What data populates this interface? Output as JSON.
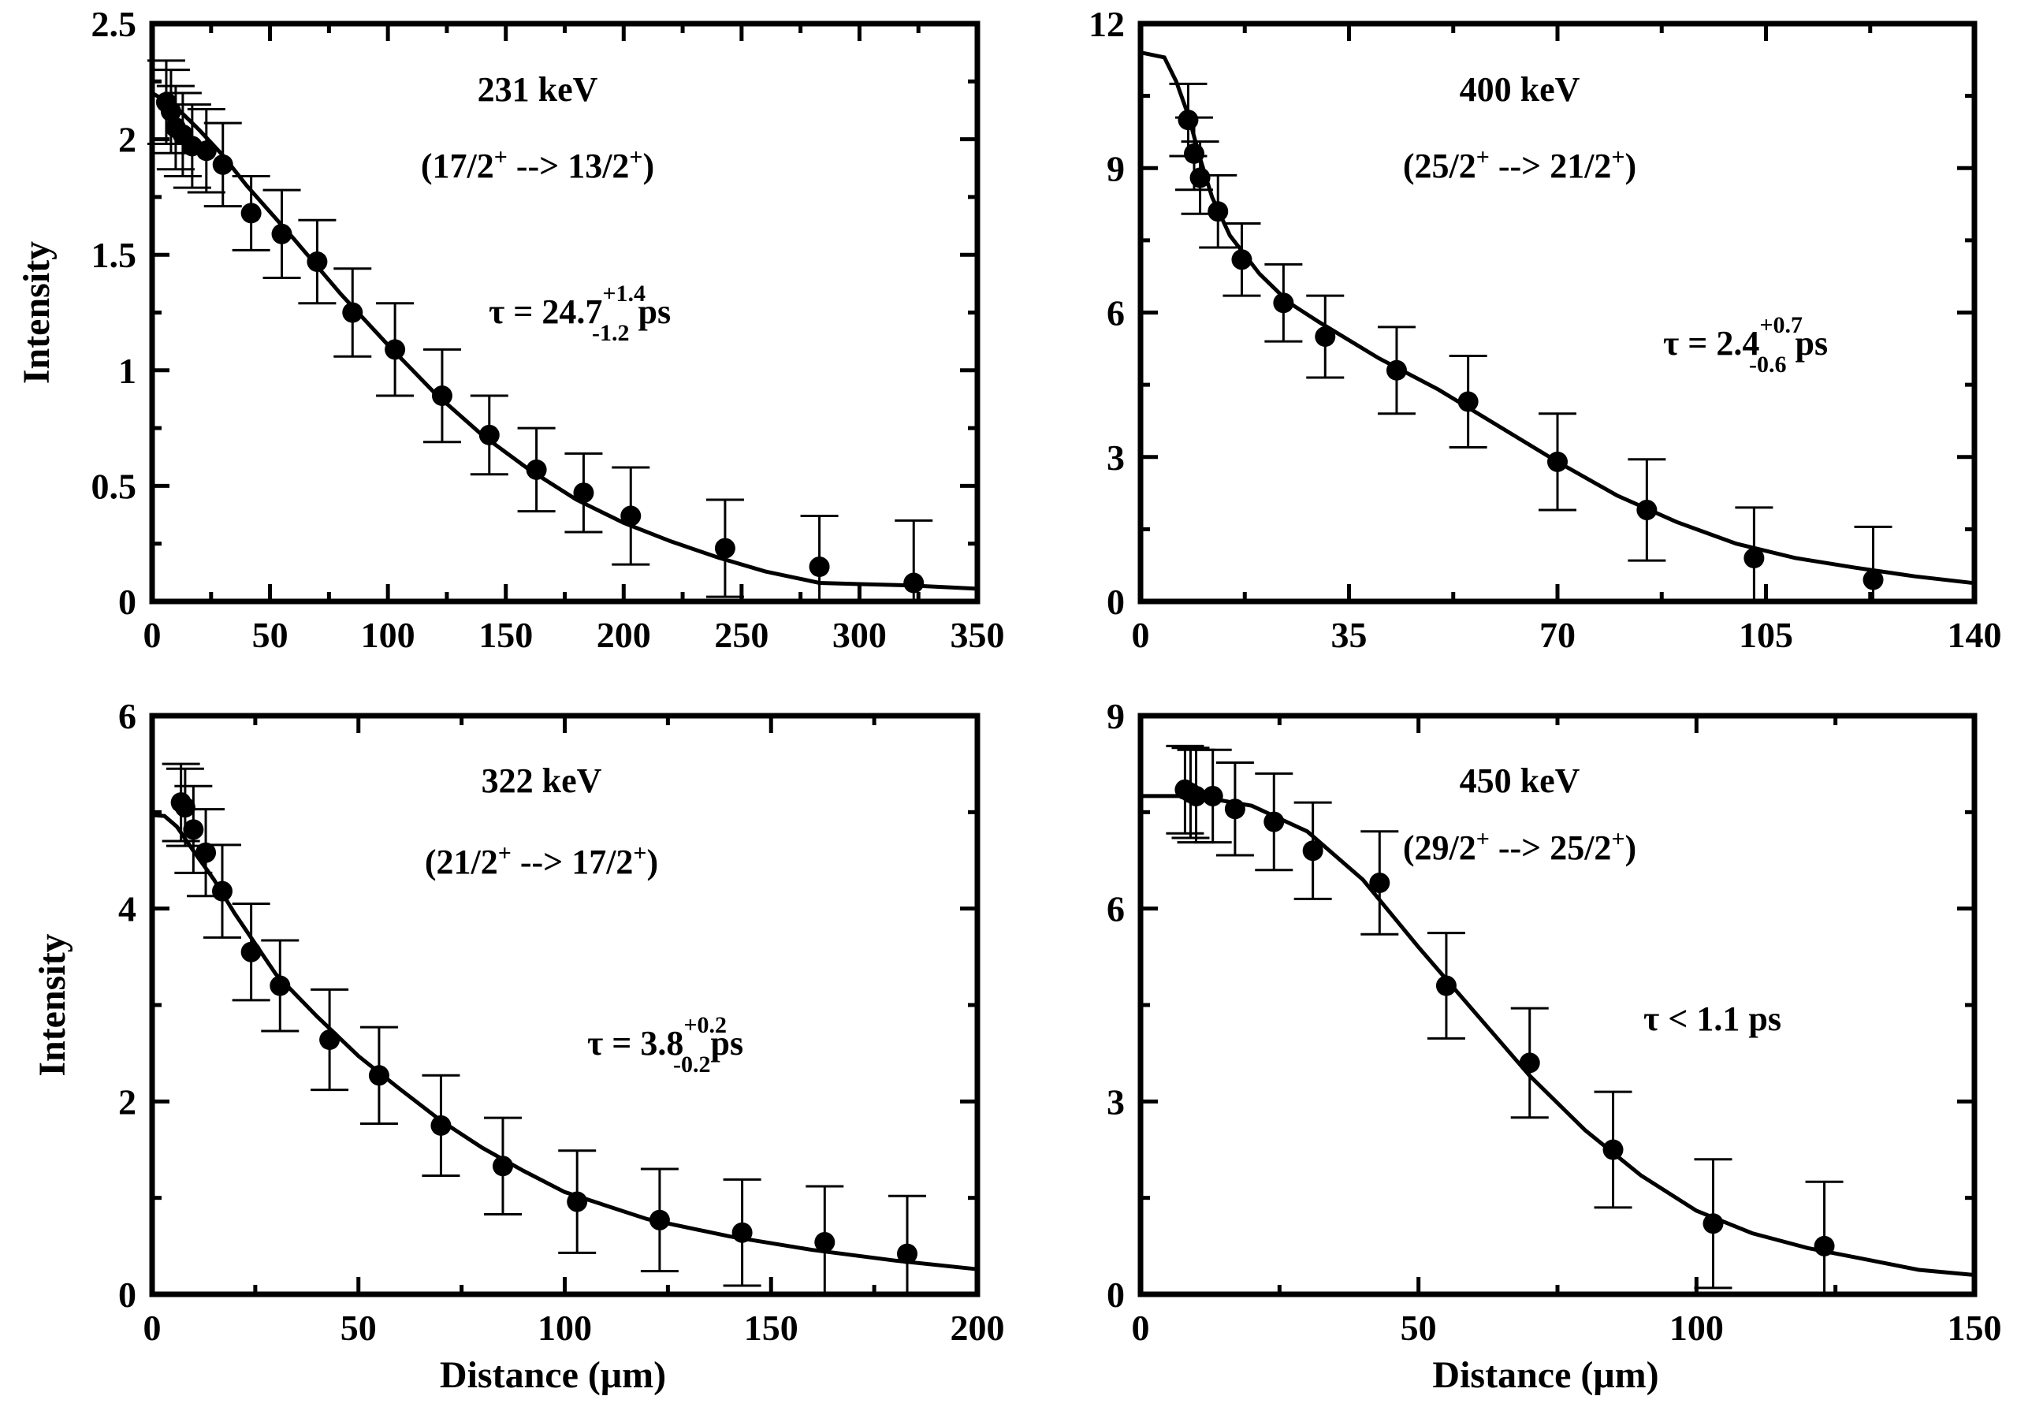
{
  "chart_data": [
    {
      "type": "scatter",
      "title": "231 keV",
      "subtitle": "(17/2+ --> 13/2+)",
      "annotation": {
        "prefix": "τ = 24.7",
        "sup": "+1.4",
        "sub": "-1.2",
        "suffix": " ps"
      },
      "xlabel": "",
      "ylabel": "Intensity",
      "xlim": [
        0,
        350
      ],
      "ylim": [
        0,
        2.5
      ],
      "xticks": [
        "0",
        "50",
        "100",
        "150",
        "200",
        "250",
        "300",
        "350"
      ],
      "yticks": [
        "0",
        "0.5",
        "1",
        "1.5",
        "2",
        "2.5"
      ],
      "points": [
        {
          "x": 6,
          "y": 2.16,
          "err": 0.18
        },
        {
          "x": 8,
          "y": 2.12,
          "err": 0.18
        },
        {
          "x": 10,
          "y": 2.05,
          "err": 0.18
        },
        {
          "x": 13,
          "y": 2.02,
          "err": 0.18
        },
        {
          "x": 17,
          "y": 1.97,
          "err": 0.18
        },
        {
          "x": 23,
          "y": 1.95,
          "err": 0.18
        },
        {
          "x": 30,
          "y": 1.89,
          "err": 0.18
        },
        {
          "x": 42,
          "y": 1.68,
          "err": 0.16
        },
        {
          "x": 55,
          "y": 1.59,
          "err": 0.19
        },
        {
          "x": 70,
          "y": 1.47,
          "err": 0.18
        },
        {
          "x": 85,
          "y": 1.25,
          "err": 0.19
        },
        {
          "x": 103,
          "y": 1.09,
          "err": 0.2
        },
        {
          "x": 123,
          "y": 0.89,
          "err": 0.2
        },
        {
          "x": 143,
          "y": 0.72,
          "err": 0.17
        },
        {
          "x": 163,
          "y": 0.57,
          "err": 0.18
        },
        {
          "x": 183,
          "y": 0.47,
          "err": 0.17
        },
        {
          "x": 203,
          "y": 0.37,
          "err": 0.21
        },
        {
          "x": 243,
          "y": 0.23,
          "err": 0.21
        },
        {
          "x": 283,
          "y": 0.15,
          "err": 0.22
        },
        {
          "x": 323,
          "y": 0.08,
          "err": 0.27
        }
      ],
      "fit": [
        [
          0,
          2.2
        ],
        [
          10,
          2.14
        ],
        [
          20,
          2.04
        ],
        [
          30,
          1.93
        ],
        [
          40,
          1.8
        ],
        [
          60,
          1.57
        ],
        [
          80,
          1.33
        ],
        [
          100,
          1.11
        ],
        [
          120,
          0.9
        ],
        [
          140,
          0.72
        ],
        [
          160,
          0.57
        ],
        [
          180,
          0.44
        ],
        [
          200,
          0.34
        ],
        [
          220,
          0.26
        ],
        [
          240,
          0.19
        ],
        [
          260,
          0.13
        ],
        [
          283,
          0.08
        ],
        [
          300,
          0.075
        ],
        [
          320,
          0.07
        ],
        [
          350,
          0.055
        ]
      ]
    },
    {
      "type": "scatter",
      "title": "400 keV",
      "subtitle": "(25/2+ --> 21/2+)",
      "annotation": {
        "prefix": "τ = 2.4",
        "sup": "+0.7",
        "sub": "-0.6",
        "suffix": " ps"
      },
      "xlabel": "",
      "ylabel": "",
      "xlim": [
        0,
        140
      ],
      "ylim": [
        0,
        12
      ],
      "xticks": [
        "0",
        "35",
        "70",
        "105",
        "140"
      ],
      "yticks": [
        "0",
        "3",
        "6",
        "9",
        "12"
      ],
      "points": [
        {
          "x": 8,
          "y": 10.0,
          "err": 0.75
        },
        {
          "x": 9,
          "y": 9.3,
          "err": 0.75
        },
        {
          "x": 10,
          "y": 8.8,
          "err": 0.75
        },
        {
          "x": 13,
          "y": 8.1,
          "err": 0.75
        },
        {
          "x": 17,
          "y": 7.1,
          "err": 0.75
        },
        {
          "x": 24,
          "y": 6.2,
          "err": 0.8
        },
        {
          "x": 31,
          "y": 5.5,
          "err": 0.85
        },
        {
          "x": 43,
          "y": 4.8,
          "err": 0.9
        },
        {
          "x": 55,
          "y": 4.15,
          "err": 0.95
        },
        {
          "x": 70,
          "y": 2.9,
          "err": 1.0
        },
        {
          "x": 85,
          "y": 1.9,
          "err": 1.05
        },
        {
          "x": 103,
          "y": 0.9,
          "err": 1.05
        },
        {
          "x": 123,
          "y": 0.45,
          "err": 1.1
        }
      ],
      "fit": [
        [
          0,
          11.4
        ],
        [
          4,
          11.3
        ],
        [
          6,
          10.8
        ],
        [
          8,
          10.1
        ],
        [
          10,
          9.2
        ],
        [
          12,
          8.4
        ],
        [
          15,
          7.6
        ],
        [
          20,
          6.8
        ],
        [
          25,
          6.2
        ],
        [
          30,
          5.8
        ],
        [
          40,
          5.05
        ],
        [
          50,
          4.4
        ],
        [
          60,
          3.65
        ],
        [
          70,
          2.9
        ],
        [
          80,
          2.2
        ],
        [
          90,
          1.65
        ],
        [
          100,
          1.2
        ],
        [
          110,
          0.9
        ],
        [
          120,
          0.7
        ],
        [
          130,
          0.52
        ],
        [
          140,
          0.38
        ]
      ]
    },
    {
      "type": "scatter",
      "title": "322 keV",
      "subtitle": "(21/2+ --> 17/2+)",
      "annotation": {
        "prefix": "τ = 3.8",
        "sup": "+0.2",
        "sub": "-0.2",
        "suffix": "ps"
      },
      "xlabel": "Distance (μm)",
      "ylabel": "Intensity",
      "xlim": [
        0,
        200
      ],
      "ylim": [
        0,
        6
      ],
      "xticks": [
        "0",
        "50",
        "100",
        "150",
        "200"
      ],
      "yticks": [
        "0",
        "2",
        "4",
        "6"
      ],
      "points": [
        {
          "x": 7,
          "y": 5.1,
          "err": 0.4
        },
        {
          "x": 8,
          "y": 5.05,
          "err": 0.4
        },
        {
          "x": 10,
          "y": 4.82,
          "err": 0.45
        },
        {
          "x": 13,
          "y": 4.58,
          "err": 0.45
        },
        {
          "x": 17,
          "y": 4.18,
          "err": 0.48
        },
        {
          "x": 24,
          "y": 3.55,
          "err": 0.5
        },
        {
          "x": 31,
          "y": 3.2,
          "err": 0.47
        },
        {
          "x": 43,
          "y": 2.64,
          "err": 0.52
        },
        {
          "x": 55,
          "y": 2.27,
          "err": 0.5
        },
        {
          "x": 70,
          "y": 1.75,
          "err": 0.52
        },
        {
          "x": 85,
          "y": 1.33,
          "err": 0.5
        },
        {
          "x": 103,
          "y": 0.96,
          "err": 0.53
        },
        {
          "x": 123,
          "y": 0.77,
          "err": 0.53
        },
        {
          "x": 143,
          "y": 0.64,
          "err": 0.55
        },
        {
          "x": 163,
          "y": 0.54,
          "err": 0.58
        },
        {
          "x": 183,
          "y": 0.42,
          "err": 0.6
        }
      ],
      "fit": [
        [
          0,
          4.97
        ],
        [
          3,
          4.96
        ],
        [
          6,
          4.85
        ],
        [
          10,
          4.6
        ],
        [
          15,
          4.3
        ],
        [
          20,
          3.95
        ],
        [
          30,
          3.32
        ],
        [
          40,
          2.88
        ],
        [
          50,
          2.47
        ],
        [
          60,
          2.13
        ],
        [
          70,
          1.8
        ],
        [
          80,
          1.52
        ],
        [
          90,
          1.28
        ],
        [
          100,
          1.06
        ],
        [
          120,
          0.78
        ],
        [
          140,
          0.6
        ],
        [
          160,
          0.46
        ],
        [
          180,
          0.35
        ],
        [
          200,
          0.26
        ]
      ]
    },
    {
      "type": "scatter",
      "title": "450 keV",
      "subtitle": "(29/2+ --> 25/2+)",
      "annotation": {
        "prefix": "τ < 1.1 ps",
        "sup": "",
        "sub": "",
        "suffix": ""
      },
      "xlabel": "Distance (μm)",
      "ylabel": "",
      "xlim": [
        0,
        150
      ],
      "ylim": [
        0,
        9
      ],
      "xticks": [
        "0",
        "50",
        "100",
        "150"
      ],
      "yticks": [
        "0",
        "3",
        "6",
        "9"
      ],
      "points": [
        {
          "x": 8,
          "y": 7.85,
          "err": 0.68
        },
        {
          "x": 9,
          "y": 7.8,
          "err": 0.7
        },
        {
          "x": 10,
          "y": 7.75,
          "err": 0.72
        },
        {
          "x": 13,
          "y": 7.75,
          "err": 0.72
        },
        {
          "x": 17,
          "y": 7.55,
          "err": 0.72
        },
        {
          "x": 24,
          "y": 7.35,
          "err": 0.75
        },
        {
          "x": 31,
          "y": 6.9,
          "err": 0.75
        },
        {
          "x": 43,
          "y": 6.4,
          "err": 0.8
        },
        {
          "x": 55,
          "y": 4.8,
          "err": 0.82
        },
        {
          "x": 70,
          "y": 3.6,
          "err": 0.85
        },
        {
          "x": 85,
          "y": 2.25,
          "err": 0.9
        },
        {
          "x": 103,
          "y": 1.1,
          "err": 1.0
        },
        {
          "x": 123,
          "y": 0.75,
          "err": 1.0
        }
      ],
      "fit": [
        [
          0,
          7.75
        ],
        [
          10,
          7.75
        ],
        [
          20,
          7.6
        ],
        [
          30,
          7.2
        ],
        [
          40,
          6.45
        ],
        [
          50,
          5.4
        ],
        [
          60,
          4.4
        ],
        [
          70,
          3.4
        ],
        [
          80,
          2.55
        ],
        [
          90,
          1.85
        ],
        [
          100,
          1.3
        ],
        [
          110,
          0.95
        ],
        [
          120,
          0.72
        ],
        [
          130,
          0.55
        ],
        [
          140,
          0.38
        ],
        [
          150,
          0.3
        ]
      ]
    }
  ]
}
